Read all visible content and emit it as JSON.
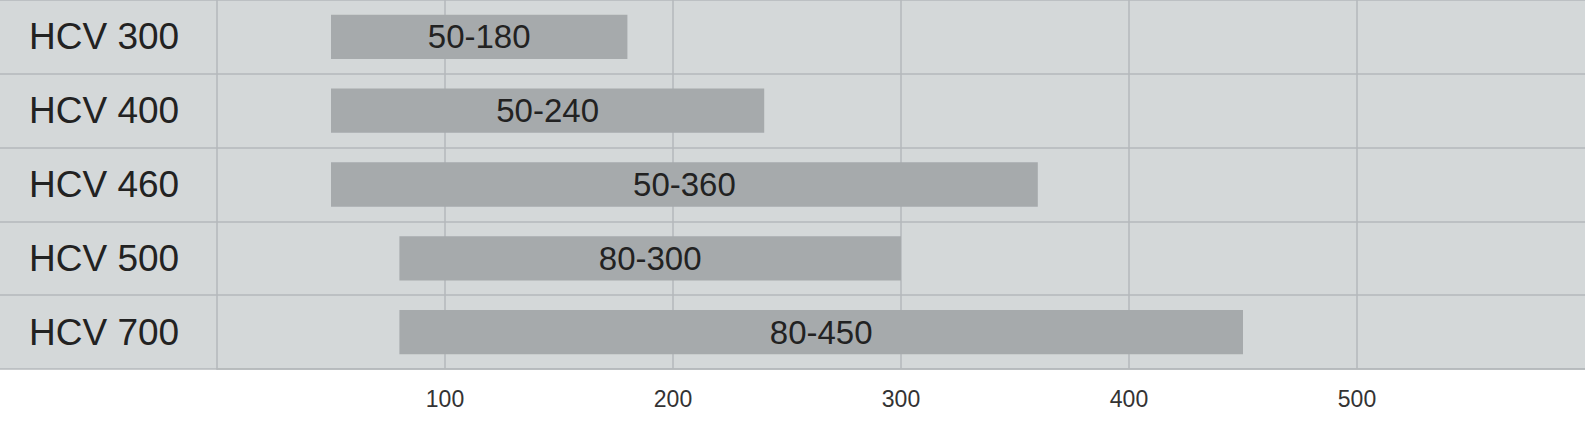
{
  "chart_data": {
    "type": "bar",
    "orientation": "horizontal",
    "categories": [
      "HCV 300",
      "HCV 400",
      "HCV 460",
      "HCV 500",
      "HCV 700"
    ],
    "values": [
      [
        50,
        180
      ],
      [
        50,
        240
      ],
      [
        50,
        360
      ],
      [
        80,
        300
      ],
      [
        80,
        450
      ]
    ],
    "value_labels": [
      "50-180",
      "50-240",
      "50-360",
      "80-300",
      "80-450"
    ],
    "color": "#a6aaac",
    "xlim": [
      0,
      600
    ],
    "xticks": [
      100,
      200,
      300,
      400,
      500
    ],
    "grid": true,
    "data_labels": true
  }
}
